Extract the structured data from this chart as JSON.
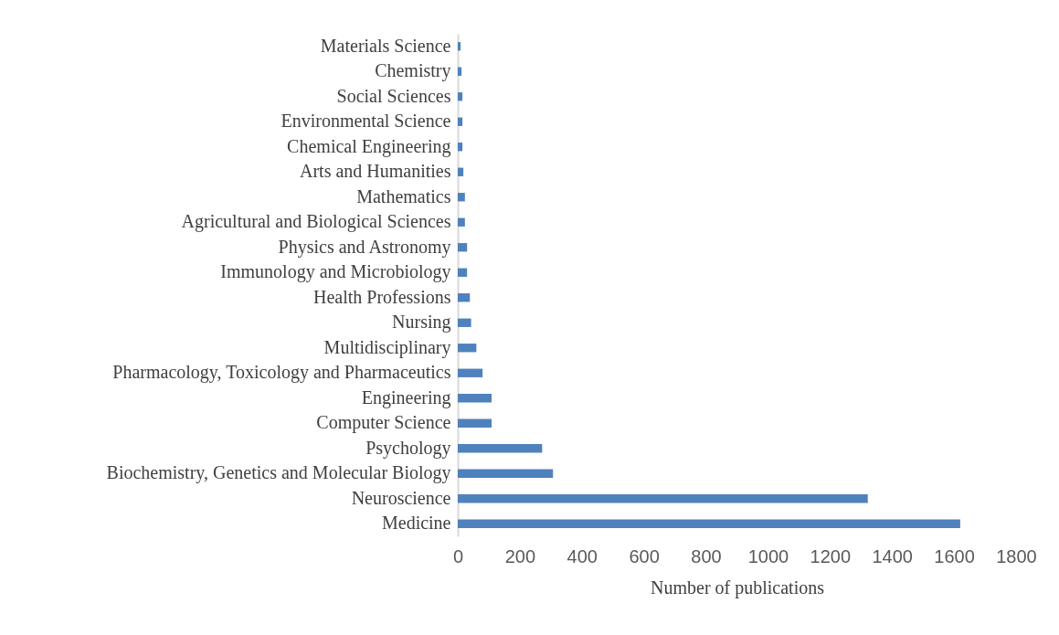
{
  "chart_data": {
    "type": "bar",
    "orientation": "horizontal",
    "xlabel": "Number of publications",
    "categories": [
      "Materials Science",
      "Chemistry",
      "Social Sciences",
      "Environmental Science",
      "Chemical Engineering",
      "Arts and Humanities",
      "Mathematics",
      "Agricultural and Biological Sciences",
      "Physics and Astronomy",
      "Immunology and Microbiology",
      "Health Professions",
      "Nursing",
      "Multidisciplinary",
      "Pharmacology, Toxicology and Pharmaceutics",
      "Engineering",
      "Computer Science",
      "Psychology",
      "Biochemistry, Genetics and Molecular Biology",
      "Neuroscience",
      "Medicine"
    ],
    "values": [
      9,
      12,
      15,
      15,
      15,
      18,
      23,
      23,
      30,
      30,
      39,
      43,
      60,
      80,
      109,
      109,
      272,
      307,
      1322,
      1620
    ],
    "color": "#4f81bd",
    "xlim": [
      0,
      1800
    ],
    "xticks": [
      0,
      200,
      400,
      600,
      800,
      1000,
      1200,
      1400,
      1600,
      1800
    ],
    "grid": false
  }
}
